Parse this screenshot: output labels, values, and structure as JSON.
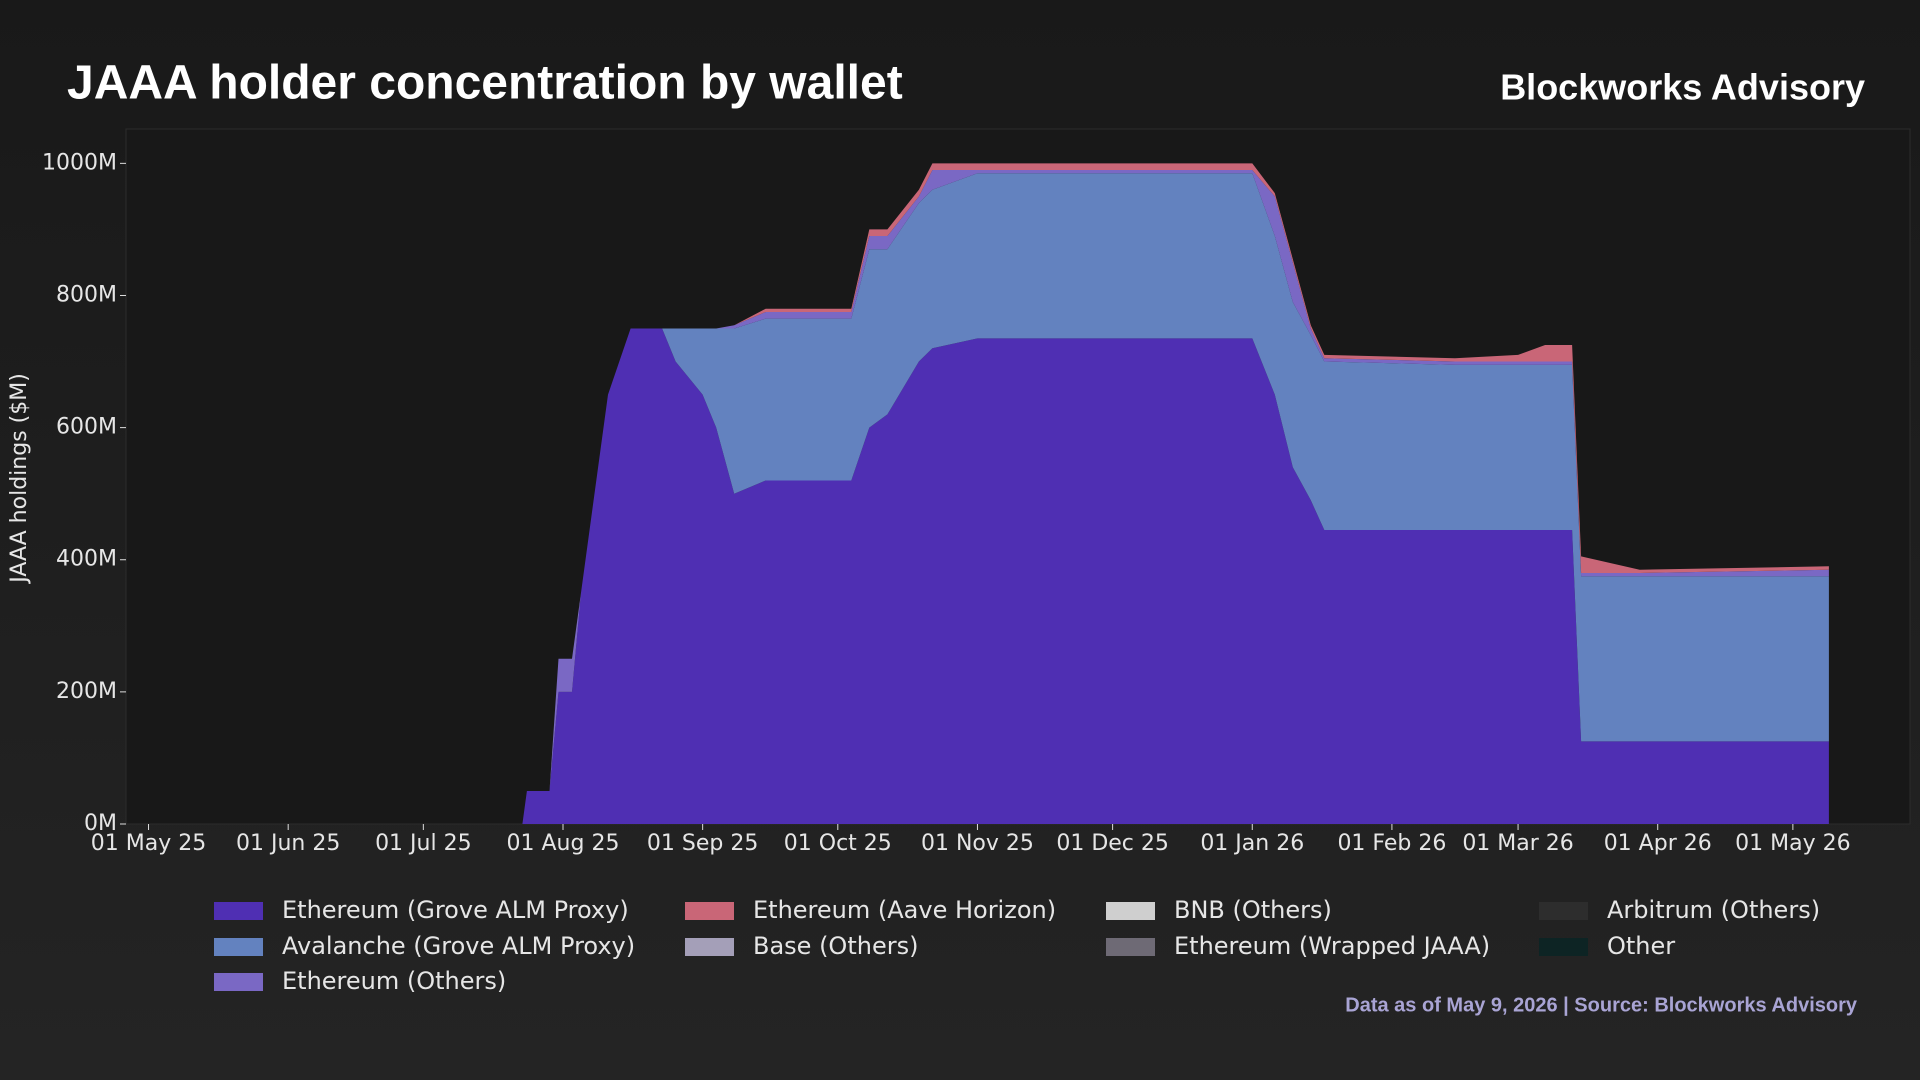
{
  "chart_data": {
    "type": "stacked-area",
    "title": "JAAA holder concentration by wallet",
    "brand": "Blockworks Advisory",
    "y_label": "JAAA holdings ($M)",
    "footnote": "Data as of May 9, 2026 | Source: Blockworks Advisory",
    "x": [
      "2025-05-01",
      "2025-07-23",
      "2025-07-24",
      "2025-07-29",
      "2025-07-31",
      "2025-08-03",
      "2025-08-05",
      "2025-08-07",
      "2025-08-11",
      "2025-08-16",
      "2025-08-23",
      "2025-08-26",
      "2025-09-01",
      "2025-09-04",
      "2025-09-08",
      "2025-09-15",
      "2025-10-04",
      "2025-10-08",
      "2025-10-12",
      "2025-10-19",
      "2025-10-22",
      "2025-11-01",
      "2026-01-01",
      "2026-01-06",
      "2026-01-10",
      "2026-01-14",
      "2026-01-17",
      "2026-02-15",
      "2026-03-01",
      "2026-03-07",
      "2026-03-13",
      "2026-03-15",
      "2026-03-28",
      "2026-05-09"
    ],
    "xlim": [
      "2025-04-26",
      "2026-05-27"
    ],
    "xticks": [
      {
        "value": "2025-05-01",
        "label": "01 May 25"
      },
      {
        "value": "2025-06-01",
        "label": "01 Jun 25"
      },
      {
        "value": "2025-07-01",
        "label": "01 Jul 25"
      },
      {
        "value": "2025-08-01",
        "label": "01 Aug 25"
      },
      {
        "value": "2025-09-01",
        "label": "01 Sep 25"
      },
      {
        "value": "2025-10-01",
        "label": "01 Oct 25"
      },
      {
        "value": "2025-11-01",
        "label": "01 Nov 25"
      },
      {
        "value": "2025-12-01",
        "label": "01 Dec 25"
      },
      {
        "value": "2026-01-01",
        "label": "01 Jan 26"
      },
      {
        "value": "2026-02-01",
        "label": "01 Feb 26"
      },
      {
        "value": "2026-03-01",
        "label": "01 Mar 26"
      },
      {
        "value": "2026-04-01",
        "label": "01 Apr 26"
      },
      {
        "value": "2026-05-01",
        "label": "01 May 26"
      }
    ],
    "ylim": [
      0,
      1052
    ],
    "yticks": [
      {
        "value": 0,
        "label": "0M"
      },
      {
        "value": 200,
        "label": "200M"
      },
      {
        "value": 400,
        "label": "400M"
      },
      {
        "value": 600,
        "label": "600M"
      },
      {
        "value": 800,
        "label": "800M"
      },
      {
        "value": 1000,
        "label": "1000M"
      }
    ],
    "series": [
      {
        "name": "Ethereum (Grove ALM Proxy)",
        "color": "#4f2fb3",
        "values": [
          0,
          0,
          50,
          50,
          200,
          200,
          350,
          450,
          650,
          750,
          750,
          700,
          650,
          600,
          500,
          520,
          520,
          600,
          620,
          700,
          720,
          735,
          735,
          650,
          540,
          490,
          445,
          445,
          445,
          445,
          445,
          125,
          125,
          125
        ]
      },
      {
        "name": "Avalanche (Grove ALM Proxy)",
        "color": "#6382bf",
        "values": [
          0,
          0,
          0,
          0,
          0,
          0,
          0,
          0,
          0,
          0,
          0,
          50,
          100,
          150,
          250,
          245,
          245,
          270,
          250,
          240,
          240,
          250,
          250,
          240,
          250,
          250,
          255,
          250,
          250,
          250,
          250,
          250,
          250,
          250
        ]
      },
      {
        "name": "Ethereum (Others)",
        "color": "#7a68c4",
        "values": [
          0,
          0,
          0,
          0,
          50,
          50,
          0,
          0,
          0,
          0,
          0,
          0,
          0,
          0,
          5,
          10,
          10,
          20,
          20,
          10,
          30,
          5,
          5,
          60,
          60,
          10,
          5,
          5,
          5,
          5,
          5,
          5,
          5,
          10
        ]
      },
      {
        "name": "Ethereum (Aave Horizon)",
        "color": "#c96677",
        "values": [
          0,
          0,
          0,
          0,
          0,
          0,
          0,
          0,
          0,
          0,
          0,
          0,
          0,
          0,
          0,
          5,
          5,
          10,
          10,
          10,
          10,
          10,
          10,
          5,
          5,
          5,
          5,
          5,
          10,
          25,
          25,
          25,
          5,
          5
        ]
      },
      {
        "name": "Base (Others)",
        "color": "#a49fb8",
        "values": [
          0,
          0,
          0,
          0,
          0,
          0,
          0,
          0,
          0,
          0,
          0,
          0,
          0,
          0,
          0,
          0,
          0,
          0,
          0,
          0,
          0,
          0,
          0,
          0,
          0,
          0,
          0,
          0,
          0,
          0,
          0,
          0,
          0,
          0
        ]
      },
      {
        "name": "BNB (Others)",
        "color": "#cfcfcf",
        "values": [
          0,
          0,
          0,
          0,
          0,
          0,
          0,
          0,
          0,
          0,
          0,
          0,
          0,
          0,
          0,
          0,
          0,
          0,
          0,
          0,
          0,
          0,
          0,
          0,
          0,
          0,
          0,
          0,
          0,
          0,
          0,
          0,
          0,
          0
        ]
      },
      {
        "name": "Ethereum (Wrapped JAAA)",
        "color": "#6e6a75",
        "values": [
          0,
          0,
          0,
          0,
          0,
          0,
          0,
          0,
          0,
          0,
          0,
          0,
          0,
          0,
          0,
          0,
          0,
          0,
          0,
          0,
          0,
          0,
          0,
          0,
          0,
          0,
          0,
          0,
          0,
          0,
          0,
          0,
          0,
          0
        ]
      },
      {
        "name": "Arbitrum (Others)",
        "color": "#2d2d2d",
        "values": [
          0,
          0,
          0,
          0,
          0,
          0,
          0,
          0,
          0,
          0,
          0,
          0,
          0,
          0,
          0,
          0,
          0,
          0,
          0,
          0,
          0,
          0,
          0,
          0,
          0,
          0,
          0,
          0,
          0,
          0,
          0,
          0,
          0,
          0
        ]
      },
      {
        "name": "Other",
        "color": "#0d2424",
        "values": [
          0,
          0,
          0,
          0,
          0,
          0,
          0,
          0,
          0,
          0,
          0,
          0,
          0,
          0,
          0,
          0,
          0,
          0,
          0,
          0,
          0,
          0,
          0,
          0,
          0,
          0,
          0,
          0,
          0,
          0,
          0,
          0,
          0,
          0
        ]
      }
    ]
  }
}
